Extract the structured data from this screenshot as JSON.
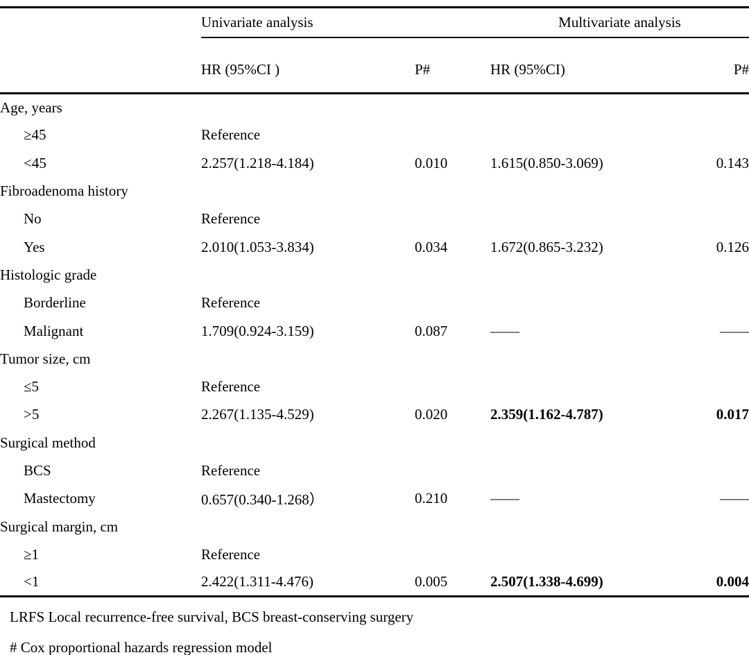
{
  "colors": {
    "background": "#ffffff",
    "text": "#000000",
    "rule": "#000000"
  },
  "table": {
    "group_headers": {
      "univariate": "Univariate analysis",
      "multivariate": "Multivariate analysis"
    },
    "column_headers": {
      "uni_hr": "HR (95%CI )",
      "uni_p": "P#",
      "multi_hr": "HR (95%CI)",
      "multi_p": "P#"
    },
    "rows": [
      {
        "label": "Age, years",
        "indent": false,
        "cells": [
          {
            "text": ""
          },
          {
            "text": ""
          },
          {
            "text": ""
          },
          {
            "text": ""
          }
        ]
      },
      {
        "label": "≥45",
        "indent": true,
        "cells": [
          {
            "text": "Reference"
          },
          {
            "text": ""
          },
          {
            "text": ""
          },
          {
            "text": ""
          }
        ]
      },
      {
        "label": "<45",
        "indent": true,
        "cells": [
          {
            "text": "2.257(1.218-4.184)"
          },
          {
            "text": "0.010"
          },
          {
            "text": "1.615(0.850-3.069)"
          },
          {
            "text": "0.143"
          }
        ]
      },
      {
        "label": "Fibroadenoma history",
        "indent": false,
        "cells": [
          {
            "text": ""
          },
          {
            "text": ""
          },
          {
            "text": ""
          },
          {
            "text": ""
          }
        ]
      },
      {
        "label": "No",
        "indent": true,
        "cells": [
          {
            "text": "Reference"
          },
          {
            "text": ""
          },
          {
            "text": ""
          },
          {
            "text": ""
          }
        ]
      },
      {
        "label": "Yes",
        "indent": true,
        "cells": [
          {
            "text": "2.010(1.053-3.834)"
          },
          {
            "text": "0.034"
          },
          {
            "text": "1.672(0.865-3.232)"
          },
          {
            "text": "0.126"
          }
        ]
      },
      {
        "label": "Histologic grade",
        "indent": false,
        "cells": [
          {
            "text": ""
          },
          {
            "text": ""
          },
          {
            "text": ""
          },
          {
            "text": ""
          }
        ]
      },
      {
        "label": "Borderline",
        "indent": true,
        "cells": [
          {
            "text": "Reference"
          },
          {
            "text": ""
          },
          {
            "text": ""
          },
          {
            "text": ""
          }
        ]
      },
      {
        "label": "Malignant",
        "indent": true,
        "cells": [
          {
            "text": "1.709(0.924-3.159)"
          },
          {
            "text": "0.087"
          },
          {
            "text": "——"
          },
          {
            "text": "——"
          }
        ]
      },
      {
        "label": "Tumor size, cm",
        "indent": false,
        "cells": [
          {
            "text": ""
          },
          {
            "text": ""
          },
          {
            "text": ""
          },
          {
            "text": ""
          }
        ]
      },
      {
        "label": "≤5",
        "indent": true,
        "cells": [
          {
            "text": "Reference"
          },
          {
            "text": ""
          },
          {
            "text": ""
          },
          {
            "text": ""
          }
        ]
      },
      {
        "label": ">5",
        "indent": true,
        "cells": [
          {
            "text": "2.267(1.135-4.529)"
          },
          {
            "text": "0.020"
          },
          {
            "text": "2.359(1.162-4.787)",
            "bold": true
          },
          {
            "text": "0.017",
            "bold": true
          }
        ]
      },
      {
        "label": "Surgical method",
        "indent": false,
        "cells": [
          {
            "text": ""
          },
          {
            "text": ""
          },
          {
            "text": ""
          },
          {
            "text": ""
          }
        ]
      },
      {
        "label": "BCS",
        "indent": true,
        "cells": [
          {
            "text": "Reference"
          },
          {
            "text": ""
          },
          {
            "text": ""
          },
          {
            "text": ""
          }
        ]
      },
      {
        "label": "Mastectomy",
        "indent": true,
        "cells": [
          {
            "text": "0.657(0.340-1.268）"
          },
          {
            "text": "0.210"
          },
          {
            "text": "——"
          },
          {
            "text": "——"
          }
        ]
      },
      {
        "label": "Surgical margin, cm",
        "indent": false,
        "cells": [
          {
            "text": ""
          },
          {
            "text": ""
          },
          {
            "text": ""
          },
          {
            "text": ""
          }
        ]
      },
      {
        "label": "≥1",
        "indent": true,
        "cells": [
          {
            "text": "Reference"
          },
          {
            "text": ""
          },
          {
            "text": ""
          },
          {
            "text": ""
          }
        ]
      },
      {
        "label": "<1",
        "indent": true,
        "cells": [
          {
            "text": "2.422(1.311-4.476)"
          },
          {
            "text": "0.005"
          },
          {
            "text": "2.507(1.338-4.699)",
            "bold": true
          },
          {
            "text": "0.004",
            "bold": true
          }
        ]
      }
    ],
    "footnotes": {
      "line1": "LRFS Local recurrence-free survival, BCS breast-conserving surgery",
      "line2": "# Cox proportional hazards regression model"
    }
  }
}
